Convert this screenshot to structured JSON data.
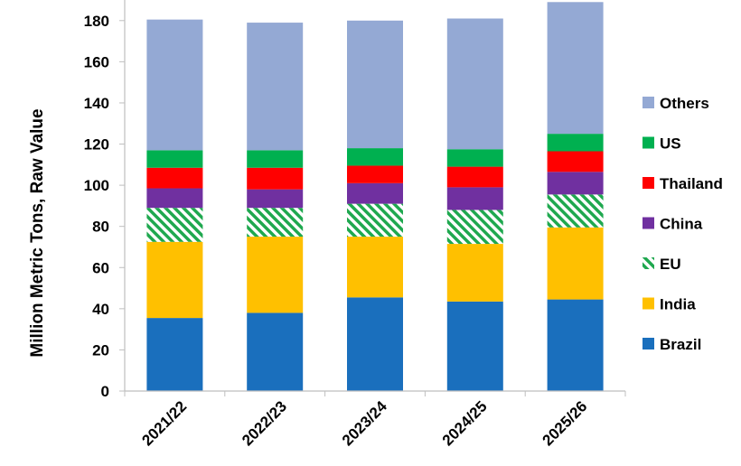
{
  "chart_data": {
    "type": "bar",
    "stacked": true,
    "title": "",
    "xlabel": "",
    "ylabel": "Million Metric Tons, Raw Value",
    "ylim": [
      0,
      190
    ],
    "yticks": [
      0,
      20,
      40,
      60,
      80,
      100,
      120,
      140,
      160,
      180
    ],
    "categories": [
      "2021/22",
      "2022/23",
      "2023/24",
      "2024/25",
      "2025/26"
    ],
    "legend_position": "right",
    "series": [
      {
        "name": "Brazil",
        "color": "#1a6fbd",
        "pattern": "solid",
        "values": [
          35.5,
          38.0,
          45.5,
          43.5,
          44.5
        ]
      },
      {
        "name": "India",
        "color": "#ffc000",
        "pattern": "solid",
        "values": [
          37.0,
          37.0,
          29.5,
          28.0,
          35.0
        ]
      },
      {
        "name": "EU",
        "color": "#1fa84f",
        "pattern": "hatch",
        "values": [
          16.5,
          14.0,
          16.0,
          16.5,
          16.0
        ]
      },
      {
        "name": "China",
        "color": "#7030a0",
        "pattern": "solid",
        "values": [
          9.5,
          9.0,
          10.0,
          11.0,
          11.0
        ]
      },
      {
        "name": "Thailand",
        "color": "#ff0000",
        "pattern": "solid",
        "values": [
          10.0,
          10.5,
          8.5,
          10.0,
          10.0
        ]
      },
      {
        "name": "US",
        "color": "#00b050",
        "pattern": "solid",
        "values": [
          8.5,
          8.5,
          8.5,
          8.5,
          8.5
        ]
      },
      {
        "name": "Others",
        "color": "#94a9d4",
        "pattern": "solid",
        "values": [
          63.5,
          62.0,
          62.0,
          63.5,
          64.0
        ]
      }
    ]
  }
}
